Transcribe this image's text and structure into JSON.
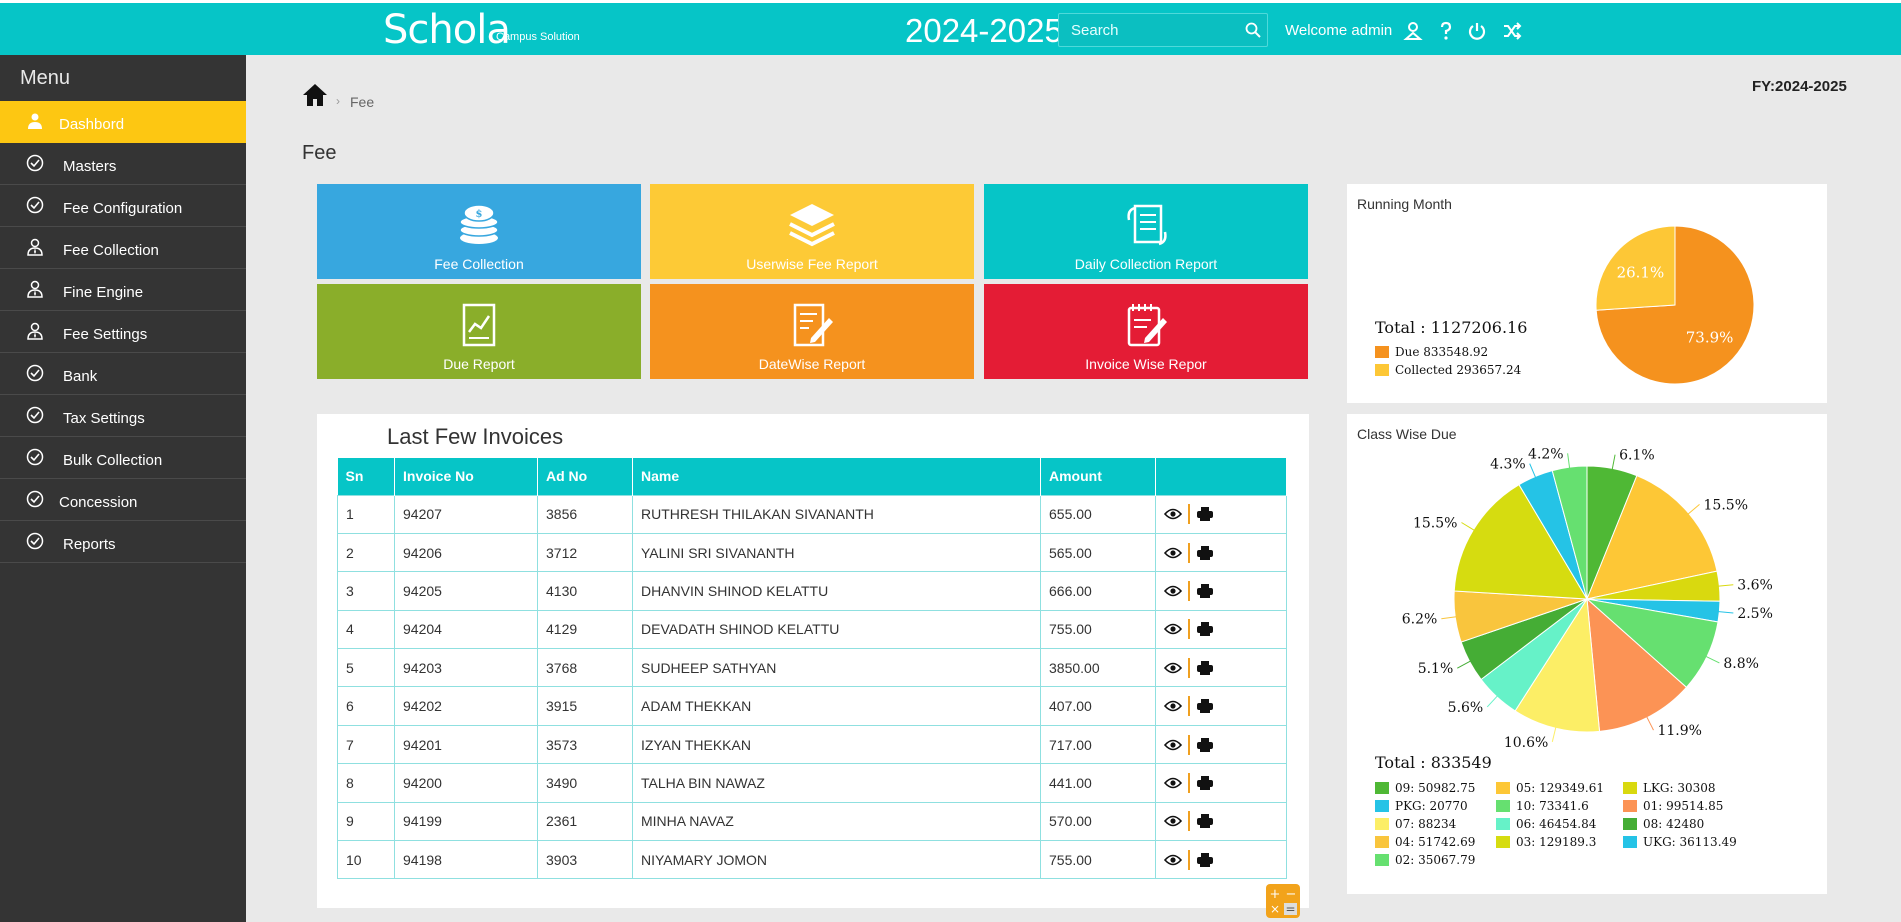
{
  "header": {
    "logo_main": "Schola",
    "logo_sub": "Campus Solution",
    "year": "2024-2025",
    "search_placeholder": "Search",
    "welcome": "Welcome admin"
  },
  "sidebar": {
    "title": "Menu",
    "items": [
      {
        "label": "Dashbord",
        "icon": "user-icon",
        "active": true
      },
      {
        "label": "Masters",
        "icon": "check-circle-icon"
      },
      {
        "label": "Fee Configuration",
        "icon": "check-circle-icon"
      },
      {
        "label": "Fee Collection",
        "icon": "user-tie-icon"
      },
      {
        "label": "Fine Engine",
        "icon": "user-tie-icon"
      },
      {
        "label": "Fee Settings",
        "icon": "user-tie-icon"
      },
      {
        "label": "Bank",
        "icon": "check-circle-icon"
      },
      {
        "label": "Tax Settings",
        "icon": "check-circle-icon"
      },
      {
        "label": "Bulk Collection",
        "icon": "check-circle-icon"
      },
      {
        "label": "Concession",
        "icon": "check-circle-icon"
      },
      {
        "label": "Reports",
        "icon": "check-circle-icon"
      }
    ]
  },
  "breadcrumb": {
    "current": "Fee"
  },
  "fy": "FY:2024-2025",
  "page_title": "Fee",
  "tiles": [
    {
      "label": "Fee Collection",
      "color": "#37a7df",
      "icon": "coins-icon"
    },
    {
      "label": "Userwise Fee Report",
      "color": "#fdca36",
      "icon": "layers-icon"
    },
    {
      "label": "Daily Collection Report",
      "color": "#06c5c7",
      "icon": "sync-doc-icon"
    },
    {
      "label": "Due Report",
      "color": "#8aae2a",
      "icon": "chart-doc-icon"
    },
    {
      "label": "DateWise Report",
      "color": "#f5921e",
      "icon": "edit-doc-icon"
    },
    {
      "label": "Invoice Wise Repor",
      "color": "#e41c35",
      "icon": "notepad-icon"
    }
  ],
  "invoices": {
    "title": "Last Few Invoices",
    "columns": [
      "Sn",
      "Invoice No",
      "Ad No",
      "Name",
      "Amount",
      ""
    ],
    "rows": [
      [
        "1",
        "94207",
        "3856",
        "RUTHRESH THILAKAN SIVANANTH",
        "655.00"
      ],
      [
        "2",
        "94206",
        "3712",
        "YALINI SRI SIVANANTH",
        "565.00"
      ],
      [
        "3",
        "94205",
        "4130",
        "DHANVIN SHINOD KELATTU",
        "666.00"
      ],
      [
        "4",
        "94204",
        "4129",
        "DEVADATH SHINOD KELATTU",
        "755.00"
      ],
      [
        "5",
        "94203",
        "3768",
        "SUDHEEP SATHYAN",
        "3850.00"
      ],
      [
        "6",
        "94202",
        "3915",
        "ADAM THEKKAN",
        "407.00"
      ],
      [
        "7",
        "94201",
        "3573",
        "IZYAN THEKKAN",
        "717.00"
      ],
      [
        "8",
        "94200",
        "3490",
        "TALHA BIN NAWAZ",
        "441.00"
      ],
      [
        "9",
        "94199",
        "2361",
        "MINHA NAVAZ",
        "570.00"
      ],
      [
        "10",
        "94198",
        "3903",
        "NIYAMARY JOMON",
        "755.00"
      ]
    ]
  },
  "chart_data": [
    {
      "type": "pie",
      "title": "Running Month",
      "total_label": "Total : 1127206.16",
      "series": [
        {
          "name": "Due 833548.92",
          "value": 833548.92,
          "pct": "73.9%",
          "color": "#f5921e"
        },
        {
          "name": "Collected 293657.24",
          "value": 293657.24,
          "pct": "26.1%",
          "color": "#fdc736"
        }
      ]
    },
    {
      "type": "pie",
      "title": "Class Wise Due",
      "total_label": "Total : 833549",
      "series": [
        {
          "name": "09: 50982.75",
          "value": 50982.75,
          "pct": "6.1%",
          "color": "#4fb835"
        },
        {
          "name": "05: 129349.61",
          "value": 129349.61,
          "pct": "15.5%",
          "color": "#fdc736"
        },
        {
          "name": "LKG: 30308",
          "value": 30308,
          "pct": "3.6%",
          "color": "#d9d90f"
        },
        {
          "name": "PKG: 20770",
          "value": 20770,
          "pct": "2.5%",
          "color": "#25c3e6"
        },
        {
          "name": "10: 73341.6",
          "value": 73341.6,
          "pct": "8.8%",
          "color": "#66e070"
        },
        {
          "name": "01: 99514.85",
          "value": 99514.85,
          "pct": "11.9%",
          "color": "#fc9355"
        },
        {
          "name": "07: 88234",
          "value": 88234,
          "pct": "10.6%",
          "color": "#fcee66"
        },
        {
          "name": "06: 46454.84",
          "value": 46454.84,
          "pct": "5.6%",
          "color": "#66f2c8"
        },
        {
          "name": "08: 42480",
          "value": 42480,
          "pct": "5.1%",
          "color": "#45ad35"
        },
        {
          "name": "04: 51742.69",
          "value": 51742.69,
          "pct": "6.2%",
          "color": "#f9c53d"
        },
        {
          "name": "03: 129189.3",
          "value": 129189.3,
          "pct": "15.5%",
          "color": "#d6dc10"
        },
        {
          "name": "UKG: 36113.49",
          "value": 36113.49,
          "pct": "4.3%",
          "color": "#25c3e6"
        },
        {
          "name": "02: 35067.79",
          "value": 35067.79,
          "pct": "4.2%",
          "color": "#66e070"
        }
      ]
    }
  ]
}
